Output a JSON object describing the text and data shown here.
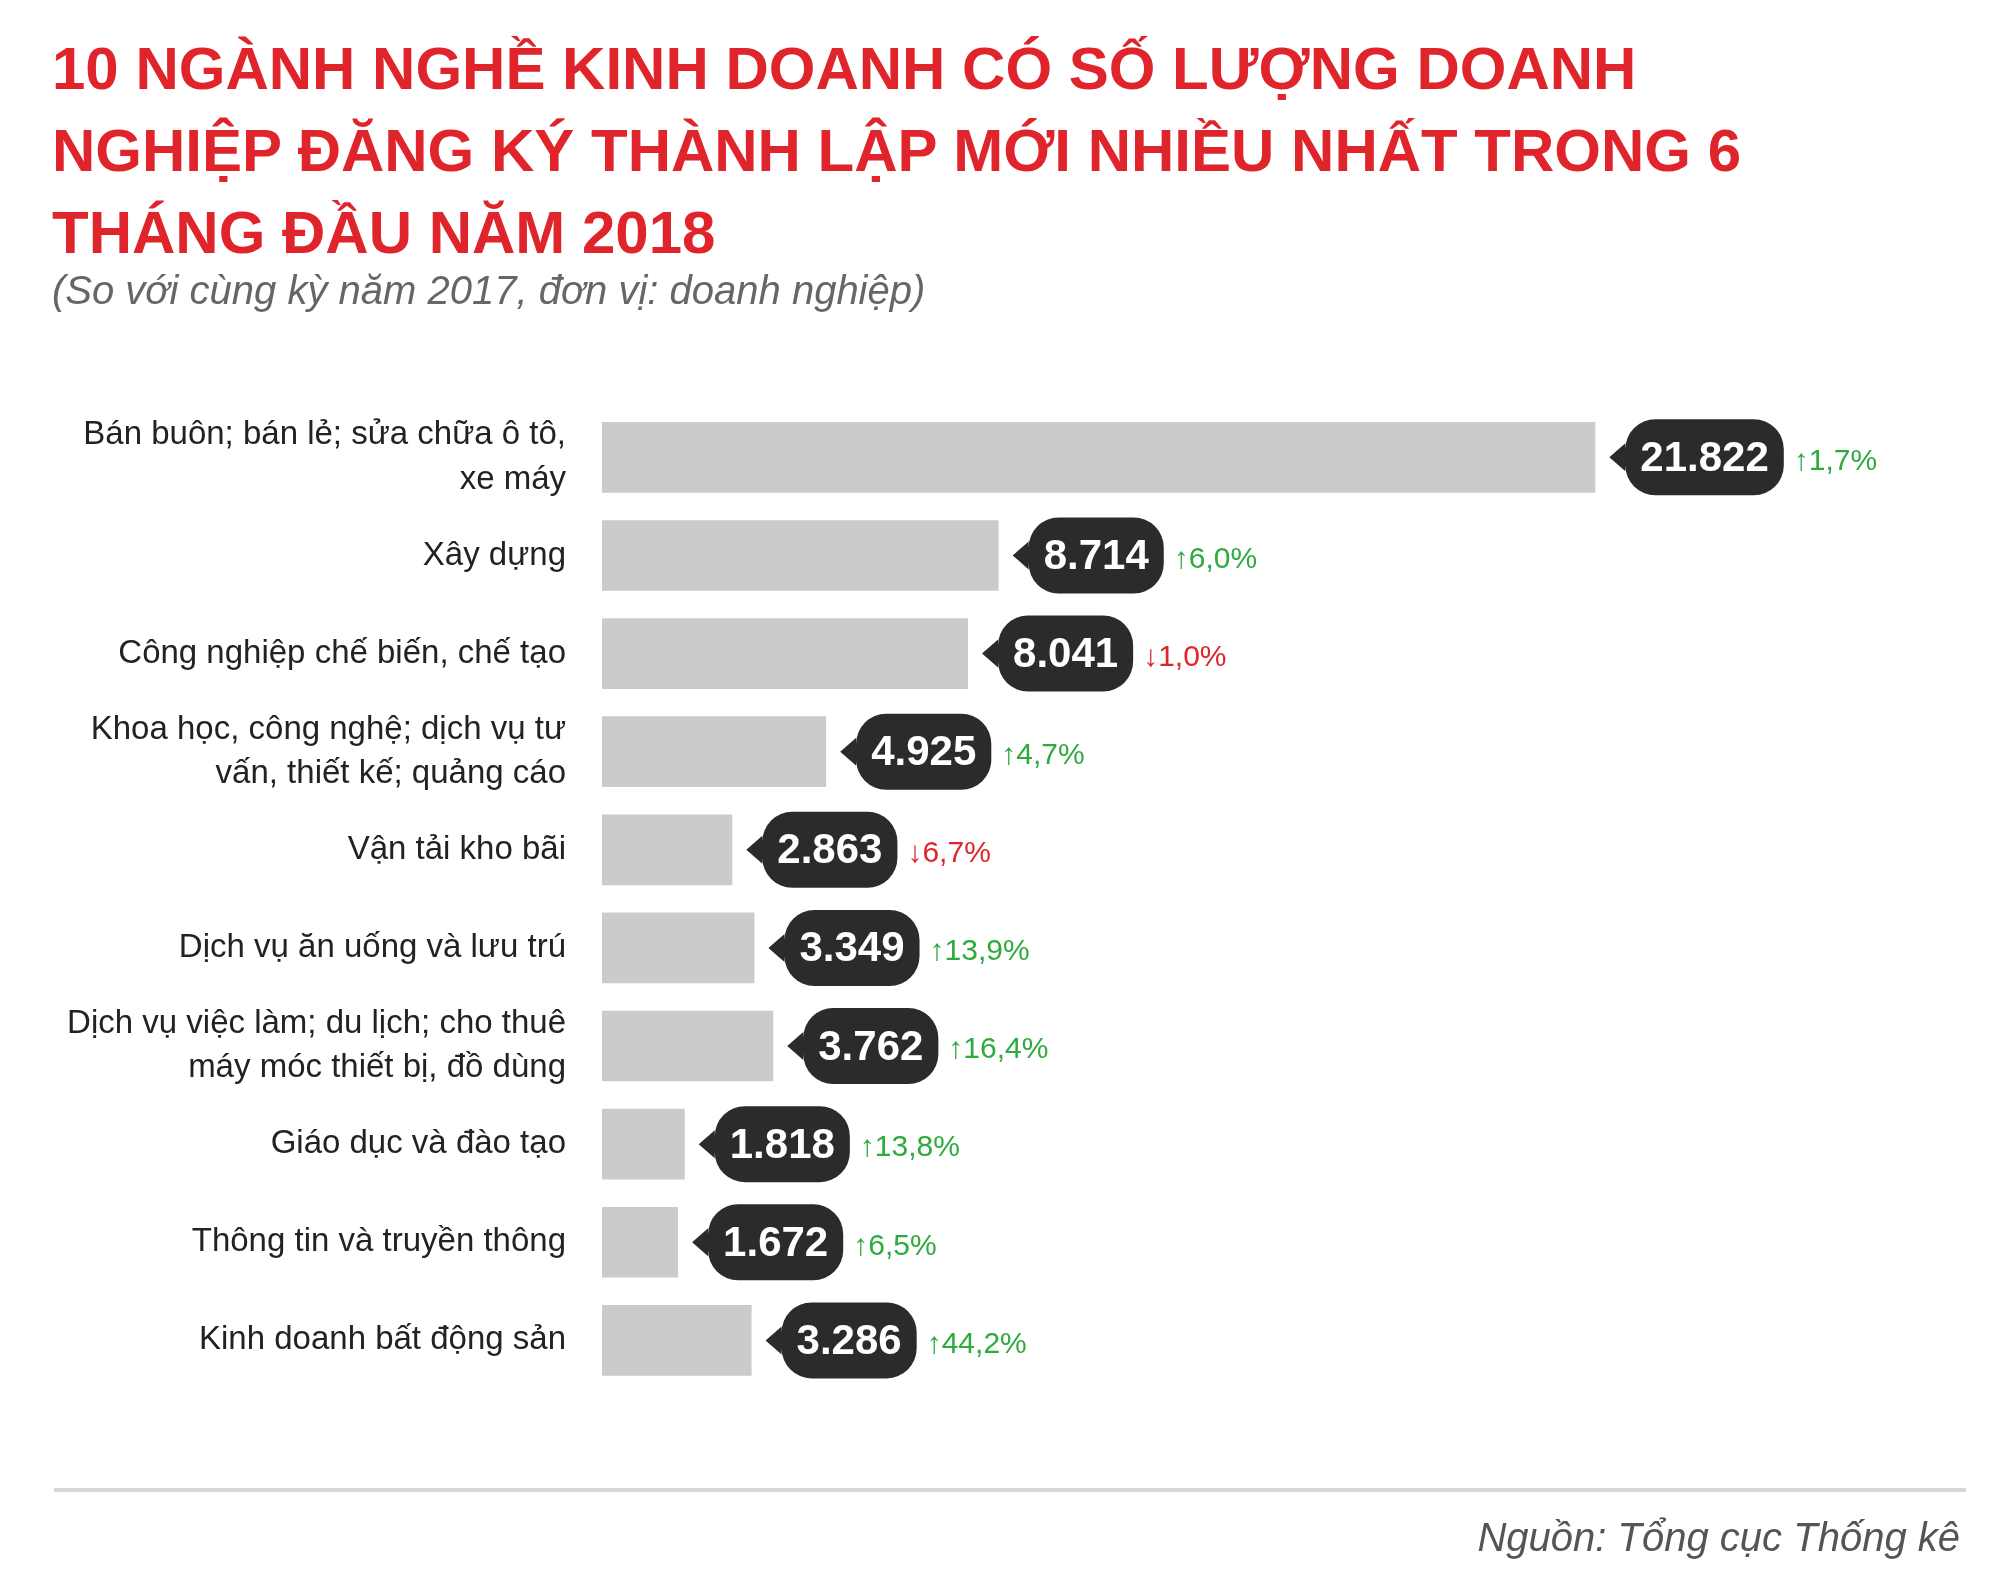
{
  "chart_data": {
    "type": "bar",
    "orientation": "horizontal",
    "title": "10 NGÀNH NGHỀ KINH DOANH CÓ SỐ LƯỢNG DOANH NGHIỆP ĐĂNG KÝ THÀNH LẬP MỚI NHIỀU NHẤT TRONG 6 THÁNG ĐẦU NĂM 2018",
    "subtitle": "(So với cùng kỳ năm 2017, đơn vị: doanh nghiệp)",
    "categories": [
      "Bán buôn; bán lẻ; sửa chữa ô tô, xe máy",
      "Xây dựng",
      "Công nghiệp chế biến, chế tạo",
      "Khoa học, công nghệ; dịch vụ tư vấn, thiết kế; quảng cáo",
      "Vận tải kho bãi",
      "Dịch vụ ăn uống và lưu trú",
      "Dịch vụ việc làm; du lịch; cho thuê máy móc thiết bị, đồ dùng",
      "Giáo dục và đào tạo",
      "Thông tin và truyền thông",
      "Kinh doanh bất động sản"
    ],
    "values": [
      21822,
      8714,
      8041,
      4925,
      2863,
      3349,
      3762,
      1818,
      1672,
      3286
    ],
    "value_labels": [
      "21.822",
      "8.714",
      "8.041",
      "4.925",
      "2.863",
      "3.349",
      "3.762",
      "1.818",
      "1.672",
      "3.286"
    ],
    "color": "#cccbcb",
    "tick_labels": "y",
    "grid": false,
    "annotations": [
      "↑1,7%",
      "↑6,0%",
      "↓1,0%",
      "↑4,7%",
      "↓6,7%",
      "↑13,9%",
      "↑16,4%",
      "↑13,8%",
      "↑6,5%",
      "↑44,2%",
      "Nguồn: Tổng cục Thống kê"
    ]
  }
}
